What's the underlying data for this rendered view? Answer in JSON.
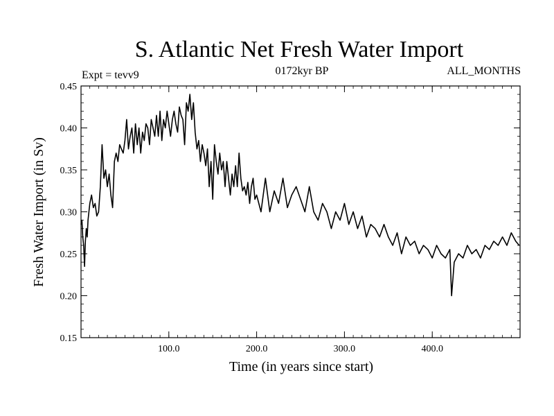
{
  "chart_data": {
    "type": "line",
    "title": "S. Atlantic Net Fresh Water Import",
    "subtitle_left": "Expt = tevv9",
    "subtitle_center": "0172kyr BP",
    "subtitle_right": "ALL_MONTHS",
    "xlabel": "Time (in years since start)",
    "ylabel": "Fresh Water Import (in Sv)",
    "xlim": [
      0,
      500
    ],
    "ylim": [
      0.15,
      0.45
    ],
    "xticks": [
      100,
      200,
      300,
      400
    ],
    "xtick_labels": [
      "100.0",
      "200.0",
      "300.0",
      "400.0"
    ],
    "yticks": [
      0.15,
      0.2,
      0.25,
      0.3,
      0.35,
      0.4,
      0.45
    ],
    "ytick_labels": [
      "0.15",
      "0.20",
      "0.25",
      "0.30",
      "0.35",
      "0.40",
      "0.45"
    ],
    "grid": false,
    "series": [
      {
        "color": "#000000",
        "x": [
          0,
          1,
          2,
          3,
          4,
          5,
          6,
          7,
          8,
          9,
          10,
          12,
          14,
          16,
          18,
          20,
          22,
          24,
          26,
          28,
          30,
          32,
          34,
          36,
          38,
          40,
          42,
          44,
          46,
          48,
          50,
          52,
          54,
          56,
          58,
          60,
          62,
          64,
          66,
          68,
          70,
          72,
          74,
          76,
          78,
          80,
          82,
          84,
          86,
          88,
          90,
          92,
          94,
          96,
          98,
          100,
          102,
          104,
          106,
          108,
          110,
          112,
          114,
          116,
          118,
          120,
          122,
          124,
          126,
          128,
          130,
          132,
          134,
          136,
          138,
          140,
          142,
          144,
          146,
          148,
          150,
          152,
          154,
          156,
          158,
          160,
          162,
          164,
          166,
          168,
          170,
          172,
          174,
          176,
          178,
          180,
          182,
          184,
          186,
          188,
          190,
          192,
          194,
          196,
          198,
          200,
          205,
          210,
          215,
          220,
          225,
          230,
          235,
          240,
          245,
          250,
          255,
          260,
          265,
          270,
          275,
          280,
          285,
          290,
          295,
          300,
          305,
          310,
          315,
          320,
          325,
          330,
          335,
          340,
          345,
          350,
          355,
          360,
          365,
          370,
          375,
          380,
          385,
          390,
          395,
          400,
          405,
          410,
          415,
          420,
          422,
          425,
          430,
          435,
          440,
          445,
          450,
          455,
          460,
          465,
          470,
          475,
          480,
          485,
          490,
          495,
          499
        ],
        "values": [
          0.285,
          0.29,
          0.27,
          0.26,
          0.235,
          0.265,
          0.28,
          0.27,
          0.29,
          0.3,
          0.31,
          0.32,
          0.305,
          0.31,
          0.295,
          0.3,
          0.33,
          0.38,
          0.34,
          0.35,
          0.33,
          0.345,
          0.32,
          0.305,
          0.36,
          0.37,
          0.36,
          0.38,
          0.375,
          0.37,
          0.385,
          0.41,
          0.375,
          0.39,
          0.4,
          0.37,
          0.405,
          0.38,
          0.4,
          0.37,
          0.395,
          0.385,
          0.405,
          0.4,
          0.38,
          0.41,
          0.4,
          0.39,
          0.415,
          0.39,
          0.42,
          0.385,
          0.41,
          0.4,
          0.42,
          0.405,
          0.39,
          0.41,
          0.42,
          0.405,
          0.395,
          0.425,
          0.415,
          0.41,
          0.38,
          0.43,
          0.42,
          0.44,
          0.41,
          0.43,
          0.395,
          0.375,
          0.385,
          0.36,
          0.38,
          0.37,
          0.355,
          0.375,
          0.33,
          0.36,
          0.315,
          0.38,
          0.36,
          0.345,
          0.37,
          0.35,
          0.36,
          0.33,
          0.36,
          0.34,
          0.32,
          0.345,
          0.33,
          0.355,
          0.33,
          0.37,
          0.34,
          0.325,
          0.33,
          0.32,
          0.335,
          0.31,
          0.33,
          0.34,
          0.315,
          0.32,
          0.3,
          0.34,
          0.3,
          0.325,
          0.31,
          0.34,
          0.305,
          0.32,
          0.33,
          0.315,
          0.3,
          0.33,
          0.3,
          0.29,
          0.31,
          0.3,
          0.28,
          0.3,
          0.29,
          0.31,
          0.285,
          0.3,
          0.28,
          0.295,
          0.27,
          0.285,
          0.28,
          0.27,
          0.285,
          0.27,
          0.26,
          0.275,
          0.25,
          0.27,
          0.26,
          0.265,
          0.25,
          0.26,
          0.255,
          0.245,
          0.26,
          0.25,
          0.245,
          0.255,
          0.2,
          0.24,
          0.25,
          0.245,
          0.26,
          0.25,
          0.255,
          0.245,
          0.26,
          0.255,
          0.265,
          0.26,
          0.27,
          0.26,
          0.275,
          0.265,
          0.26
        ]
      }
    ]
  }
}
